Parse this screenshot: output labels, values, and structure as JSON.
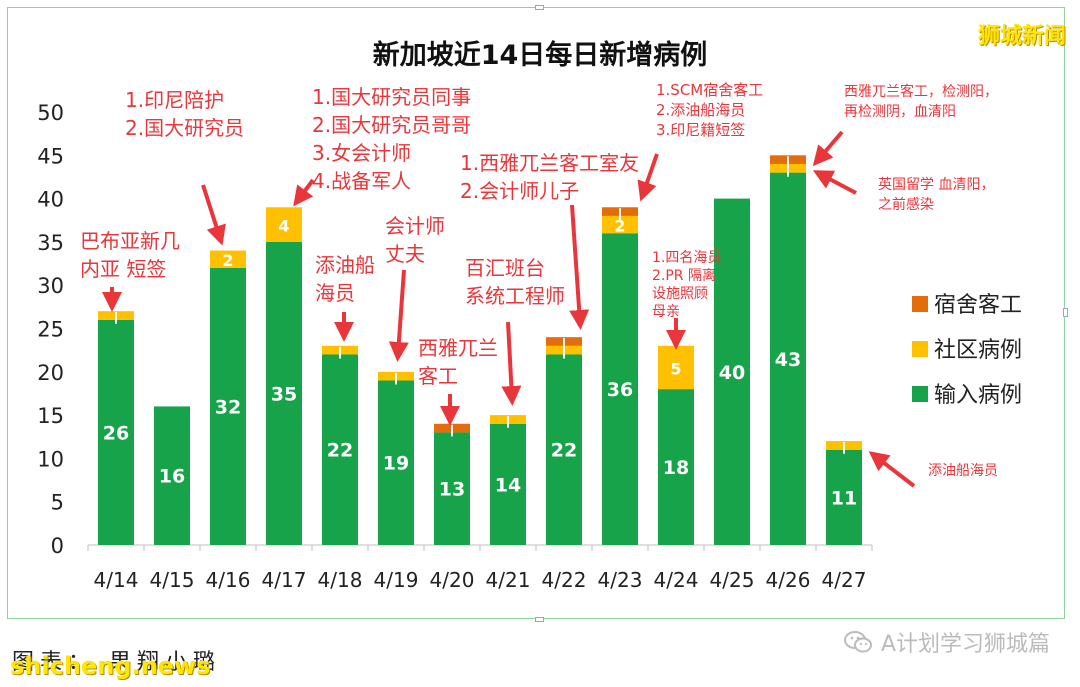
{
  "watermark_top": "狮城新闻",
  "watermark_bottom": "shicheng.news",
  "caption": "图表： 果翔小璐",
  "wechat_text": "A计划学习狮城篇",
  "colors": {
    "imported": "#16a34a",
    "community": "#ffc000",
    "dorm": "#e46c0a",
    "annotation": "#e8363b"
  },
  "chart_data": {
    "type": "bar",
    "stacked": true,
    "title": "新加坡近14日每日新增病例",
    "xlabel": "",
    "ylabel": "",
    "ylim": [
      0,
      50
    ],
    "yticks": [
      0,
      5,
      10,
      15,
      20,
      25,
      30,
      35,
      40,
      45,
      50
    ],
    "grid": false,
    "legend_position": "right",
    "categories": [
      "4/14",
      "4/15",
      "4/16",
      "4/17",
      "4/18",
      "4/19",
      "4/20",
      "4/21",
      "4/22",
      "4/23",
      "4/24",
      "4/25",
      "4/26",
      "4/27"
    ],
    "series": [
      {
        "name": "输入病例",
        "key": "imported",
        "values": [
          26,
          16,
          32,
          35,
          22,
          19,
          13,
          14,
          22,
          36,
          18,
          40,
          43,
          11
        ]
      },
      {
        "name": "社区病例",
        "key": "community",
        "values": [
          1,
          0,
          2,
          4,
          1,
          1,
          0,
          1,
          1,
          2,
          5,
          0,
          1,
          1
        ]
      },
      {
        "name": "宿舍客工",
        "key": "dorm",
        "values": [
          0,
          0,
          0,
          0,
          0,
          0,
          1,
          0,
          1,
          1,
          0,
          0,
          1,
          0
        ]
      }
    ],
    "value_labels": {
      "imported": [
        "26",
        "16",
        "32",
        "35",
        "22",
        "19",
        "13",
        "14",
        "22",
        "36",
        "18",
        "40",
        "43",
        "11"
      ],
      "community": [
        "",
        "",
        "2",
        "4",
        "",
        "",
        "",
        "",
        "",
        "2",
        "5",
        "",
        "",
        ""
      ]
    },
    "legend_order": [
      "dorm",
      "community",
      "imported"
    ],
    "annotations": [
      {
        "lines": [
          "巴布亚新几",
          "内亚    短签"
        ],
        "size": 20
      },
      {
        "lines": [
          "1.印尼陪护",
          "2.国大研究员"
        ],
        "size": 20
      },
      {
        "lines": [
          "1.国大研究员同事",
          "2.国大研究员哥哥",
          "3.女会计师",
          "4.战备军人"
        ],
        "size": 20
      },
      {
        "lines": [
          "添油船",
          "海员"
        ],
        "size": 20
      },
      {
        "lines": [
          "会计师",
          "丈夫"
        ],
        "size": 20
      },
      {
        "lines": [
          "西雅兀兰",
          "客工"
        ],
        "size": 20
      },
      {
        "lines": [
          "百汇班台",
          "系统工程师"
        ],
        "size": 20
      },
      {
        "lines": [
          "1.西雅兀兰客工室友",
          "2.会计师儿子"
        ],
        "size": 20
      },
      {
        "lines": [
          "1.SCM宿舍客工",
          "2.添油船海员",
          "3.印尼籍短签"
        ],
        "size": 15
      },
      {
        "lines": [
          "1.四名海员",
          "2.PR 隔离",
          "设施照顾",
          "母亲"
        ],
        "size": 14
      },
      {
        "lines": [
          "西雅兀兰客工，检测阳，",
          "再检测阴，血清阳"
        ],
        "size": 14
      },
      {
        "lines": [
          "英国留学 血清阳，",
          "之前感染"
        ],
        "size": 14
      },
      {
        "lines": [
          "添油船海员"
        ],
        "size": 14
      }
    ]
  }
}
